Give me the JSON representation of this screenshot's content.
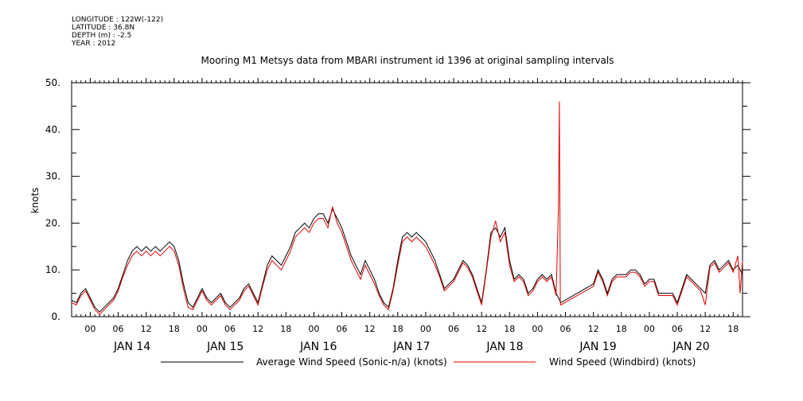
{
  "header": {
    "meta_lines": [
      "LONGITUDE : 122W(-122)",
      "LATITUDE : 36.8N",
      "DEPTH (m) : -2.5",
      "YEAR : 2012"
    ]
  },
  "chart_data": {
    "type": "line",
    "title": "Mooring M1 Metsys data from MBARI instrument id 1396 at original sampling intervals",
    "ylabel": "knots",
    "xlabel": "",
    "ylim": [
      0,
      50
    ],
    "xlim_hours": [
      -4,
      140
    ],
    "yticks": [
      0,
      10,
      20,
      30,
      40,
      50
    ],
    "ytick_labels": [
      "0.",
      "10.",
      "20.",
      "30.",
      "40.",
      "50."
    ],
    "xtick_hours": [
      0,
      6,
      12,
      18,
      24,
      30,
      36,
      42,
      48,
      54,
      60,
      66,
      72,
      78,
      84,
      90,
      96,
      102,
      108,
      114,
      120,
      126,
      132,
      138
    ],
    "xtick_labels": [
      "00",
      "06",
      "12",
      "18",
      "00",
      "06",
      "12",
      "18",
      "00",
      "06",
      "12",
      "18",
      "00",
      "06",
      "12",
      "18",
      "00",
      "06",
      "12",
      "18",
      "00",
      "06",
      "12",
      "18"
    ],
    "day_labels": [
      {
        "label": "JAN 14",
        "hour": 9
      },
      {
        "label": "JAN 15",
        "hour": 29
      },
      {
        "label": "JAN 16",
        "hour": 49
      },
      {
        "label": "JAN 17",
        "hour": 69
      },
      {
        "label": "JAN 18",
        "hour": 89
      },
      {
        "label": "JAN 19",
        "hour": 109
      },
      {
        "label": "JAN 20",
        "hour": 129
      }
    ],
    "legend_position": "bottom",
    "series": [
      {
        "name": "Average Wind Speed (Sonic-n/a) (knots)",
        "color": "#000000",
        "points": [
          [
            -4,
            3.5
          ],
          [
            -3,
            3
          ],
          [
            -2,
            5
          ],
          [
            -1,
            6
          ],
          [
            0,
            4
          ],
          [
            1,
            2
          ],
          [
            2,
            1
          ],
          [
            3,
            2
          ],
          [
            4,
            3
          ],
          [
            5,
            4
          ],
          [
            6,
            6
          ],
          [
            7,
            9
          ],
          [
            8,
            12
          ],
          [
            9,
            14
          ],
          [
            10,
            15
          ],
          [
            11,
            14
          ],
          [
            12,
            15
          ],
          [
            13,
            14
          ],
          [
            14,
            15
          ],
          [
            15,
            14
          ],
          [
            16,
            15
          ],
          [
            17,
            16
          ],
          [
            18,
            15
          ],
          [
            19,
            12
          ],
          [
            20,
            7
          ],
          [
            21,
            3
          ],
          [
            22,
            2
          ],
          [
            23,
            4
          ],
          [
            24,
            6
          ],
          [
            25,
            4
          ],
          [
            26,
            3
          ],
          [
            27,
            4
          ],
          [
            28,
            5
          ],
          [
            29,
            3
          ],
          [
            30,
            2
          ],
          [
            31,
            3
          ],
          [
            32,
            4
          ],
          [
            33,
            6
          ],
          [
            34,
            7
          ],
          [
            35,
            5
          ],
          [
            36,
            3
          ],
          [
            37,
            7
          ],
          [
            38,
            11
          ],
          [
            39,
            13
          ],
          [
            40,
            12
          ],
          [
            41,
            11
          ],
          [
            42,
            13
          ],
          [
            43,
            15
          ],
          [
            44,
            18
          ],
          [
            45,
            19
          ],
          [
            46,
            20
          ],
          [
            47,
            19
          ],
          [
            48,
            21
          ],
          [
            49,
            22
          ],
          [
            50,
            22
          ],
          [
            51,
            20
          ],
          [
            52,
            23
          ],
          [
            53,
            21
          ],
          [
            54,
            19
          ],
          [
            55,
            16
          ],
          [
            56,
            13
          ],
          [
            57,
            11
          ],
          [
            58,
            9
          ],
          [
            59,
            12
          ],
          [
            60,
            10
          ],
          [
            61,
            8
          ],
          [
            62,
            5
          ],
          [
            63,
            3
          ],
          [
            64,
            2
          ],
          [
            65,
            6
          ],
          [
            66,
            12
          ],
          [
            67,
            17
          ],
          [
            68,
            18
          ],
          [
            69,
            17
          ],
          [
            70,
            18
          ],
          [
            71,
            17
          ],
          [
            72,
            16
          ],
          [
            73,
            14
          ],
          [
            74,
            12
          ],
          [
            75,
            9
          ],
          [
            76,
            6
          ],
          [
            77,
            7
          ],
          [
            78,
            8
          ],
          [
            79,
            10
          ],
          [
            80,
            12
          ],
          [
            81,
            11
          ],
          [
            82,
            9
          ],
          [
            83,
            6
          ],
          [
            84,
            3
          ],
          [
            85,
            10
          ],
          [
            86,
            18
          ],
          [
            87,
            19
          ],
          [
            88,
            17
          ],
          [
            89,
            19
          ],
          [
            90,
            12
          ],
          [
            91,
            8
          ],
          [
            92,
            9
          ],
          [
            93,
            8
          ],
          [
            94,
            5
          ],
          [
            95,
            6
          ],
          [
            96,
            8
          ],
          [
            97,
            9
          ],
          [
            98,
            8
          ],
          [
            99,
            9
          ],
          [
            100,
            5
          ],
          [
            101,
            3
          ],
          [
            108,
            7
          ],
          [
            109,
            10
          ],
          [
            110,
            8
          ],
          [
            111,
            5
          ],
          [
            112,
            8
          ],
          [
            113,
            9
          ],
          [
            114,
            9
          ],
          [
            115,
            9
          ],
          [
            116,
            10
          ],
          [
            117,
            10
          ],
          [
            118,
            9
          ],
          [
            119,
            7
          ],
          [
            120,
            8
          ],
          [
            121,
            8
          ],
          [
            122,
            5
          ],
          [
            125,
            5
          ],
          [
            126,
            3
          ],
          [
            127,
            6
          ],
          [
            128,
            9
          ],
          [
            131,
            6
          ],
          [
            132,
            5
          ],
          [
            133,
            11
          ],
          [
            134,
            12
          ],
          [
            135,
            10
          ],
          [
            136,
            11
          ],
          [
            137,
            12
          ],
          [
            138,
            10
          ],
          [
            139,
            11
          ],
          [
            140,
            9
          ]
        ]
      },
      {
        "name": "Wind Speed (Windbird) (knots)",
        "color": "#e00000",
        "points": [
          [
            -4,
            3
          ],
          [
            -3,
            2.5
          ],
          [
            -2,
            4.5
          ],
          [
            -1,
            5.5
          ],
          [
            0,
            3.5
          ],
          [
            1,
            1.5
          ],
          [
            2,
            0.5
          ],
          [
            3,
            1.5
          ],
          [
            4,
            2.5
          ],
          [
            5,
            3.5
          ],
          [
            6,
            5.5
          ],
          [
            7,
            8.5
          ],
          [
            8,
            11
          ],
          [
            9,
            13
          ],
          [
            10,
            14
          ],
          [
            11,
            13
          ],
          [
            12,
            14
          ],
          [
            13,
            13
          ],
          [
            14,
            14
          ],
          [
            15,
            13
          ],
          [
            16,
            14
          ],
          [
            17,
            15
          ],
          [
            18,
            14
          ],
          [
            19,
            11
          ],
          [
            20,
            6
          ],
          [
            21,
            2
          ],
          [
            22,
            1.5
          ],
          [
            23,
            3.5
          ],
          [
            24,
            5.5
          ],
          [
            25,
            3.5
          ],
          [
            26,
            2.5
          ],
          [
            27,
            3.5
          ],
          [
            28,
            4.5
          ],
          [
            29,
            2.5
          ],
          [
            30,
            1.5
          ],
          [
            31,
            2.5
          ],
          [
            32,
            3.5
          ],
          [
            33,
            5.5
          ],
          [
            34,
            6.5
          ],
          [
            35,
            4.5
          ],
          [
            36,
            2.5
          ],
          [
            37,
            6.5
          ],
          [
            38,
            10
          ],
          [
            39,
            12
          ],
          [
            40,
            11
          ],
          [
            41,
            10
          ],
          [
            42,
            12
          ],
          [
            43,
            14
          ],
          [
            44,
            17
          ],
          [
            45,
            18
          ],
          [
            46,
            19
          ],
          [
            47,
            18
          ],
          [
            48,
            20
          ],
          [
            49,
            21
          ],
          [
            50,
            21
          ],
          [
            51,
            19
          ],
          [
            52,
            23.5
          ],
          [
            53,
            20
          ],
          [
            54,
            18
          ],
          [
            55,
            15
          ],
          [
            56,
            12
          ],
          [
            57,
            10
          ],
          [
            58,
            8
          ],
          [
            59,
            11
          ],
          [
            60,
            9
          ],
          [
            61,
            7
          ],
          [
            62,
            4.5
          ],
          [
            63,
            2.5
          ],
          [
            64,
            1.5
          ],
          [
            65,
            5.5
          ],
          [
            66,
            11
          ],
          [
            67,
            16
          ],
          [
            68,
            17
          ],
          [
            69,
            16
          ],
          [
            70,
            17
          ],
          [
            71,
            16
          ],
          [
            72,
            15
          ],
          [
            73,
            13
          ],
          [
            74,
            11
          ],
          [
            75,
            8.5
          ],
          [
            76,
            5.5
          ],
          [
            77,
            6.5
          ],
          [
            78,
            7.5
          ],
          [
            79,
            9.5
          ],
          [
            80,
            11.5
          ],
          [
            81,
            10.5
          ],
          [
            82,
            8.5
          ],
          [
            83,
            5.5
          ],
          [
            84,
            2.5
          ],
          [
            85,
            9.5
          ],
          [
            86,
            17
          ],
          [
            87,
            20.5
          ],
          [
            88,
            16
          ],
          [
            89,
            18
          ],
          [
            90,
            11
          ],
          [
            91,
            7.5
          ],
          [
            92,
            8.5
          ],
          [
            93,
            7.5
          ],
          [
            94,
            4.5
          ],
          [
            95,
            5.5
          ],
          [
            96,
            7.5
          ],
          [
            97,
            8.5
          ],
          [
            98,
            7.5
          ],
          [
            99,
            8.5
          ],
          [
            100,
            4.5
          ],
          [
            100.5,
            24
          ],
          [
            100.7,
            46
          ],
          [
            100.9,
            3
          ],
          [
            101,
            2.5
          ],
          [
            108,
            6.5
          ],
          [
            109,
            9.5
          ],
          [
            110,
            7.5
          ],
          [
            111,
            4.5
          ],
          [
            112,
            7.5
          ],
          [
            113,
            8.5
          ],
          [
            114,
            8.5
          ],
          [
            115,
            8.5
          ],
          [
            116,
            9.5
          ],
          [
            117,
            9.5
          ],
          [
            118,
            8.5
          ],
          [
            119,
            6.5
          ],
          [
            120,
            7.5
          ],
          [
            121,
            7.5
          ],
          [
            122,
            4.5
          ],
          [
            125,
            4.5
          ],
          [
            126,
            2.5
          ],
          [
            127,
            5.5
          ],
          [
            128,
            8.5
          ],
          [
            131,
            5.5
          ],
          [
            132,
            2.5
          ],
          [
            133,
            10.5
          ],
          [
            134,
            11.5
          ],
          [
            135,
            9.5
          ],
          [
            136,
            10.5
          ],
          [
            137,
            11.5
          ],
          [
            138,
            9.5
          ],
          [
            139,
            13
          ],
          [
            139.5,
            5
          ],
          [
            140,
            12
          ]
        ]
      }
    ]
  }
}
